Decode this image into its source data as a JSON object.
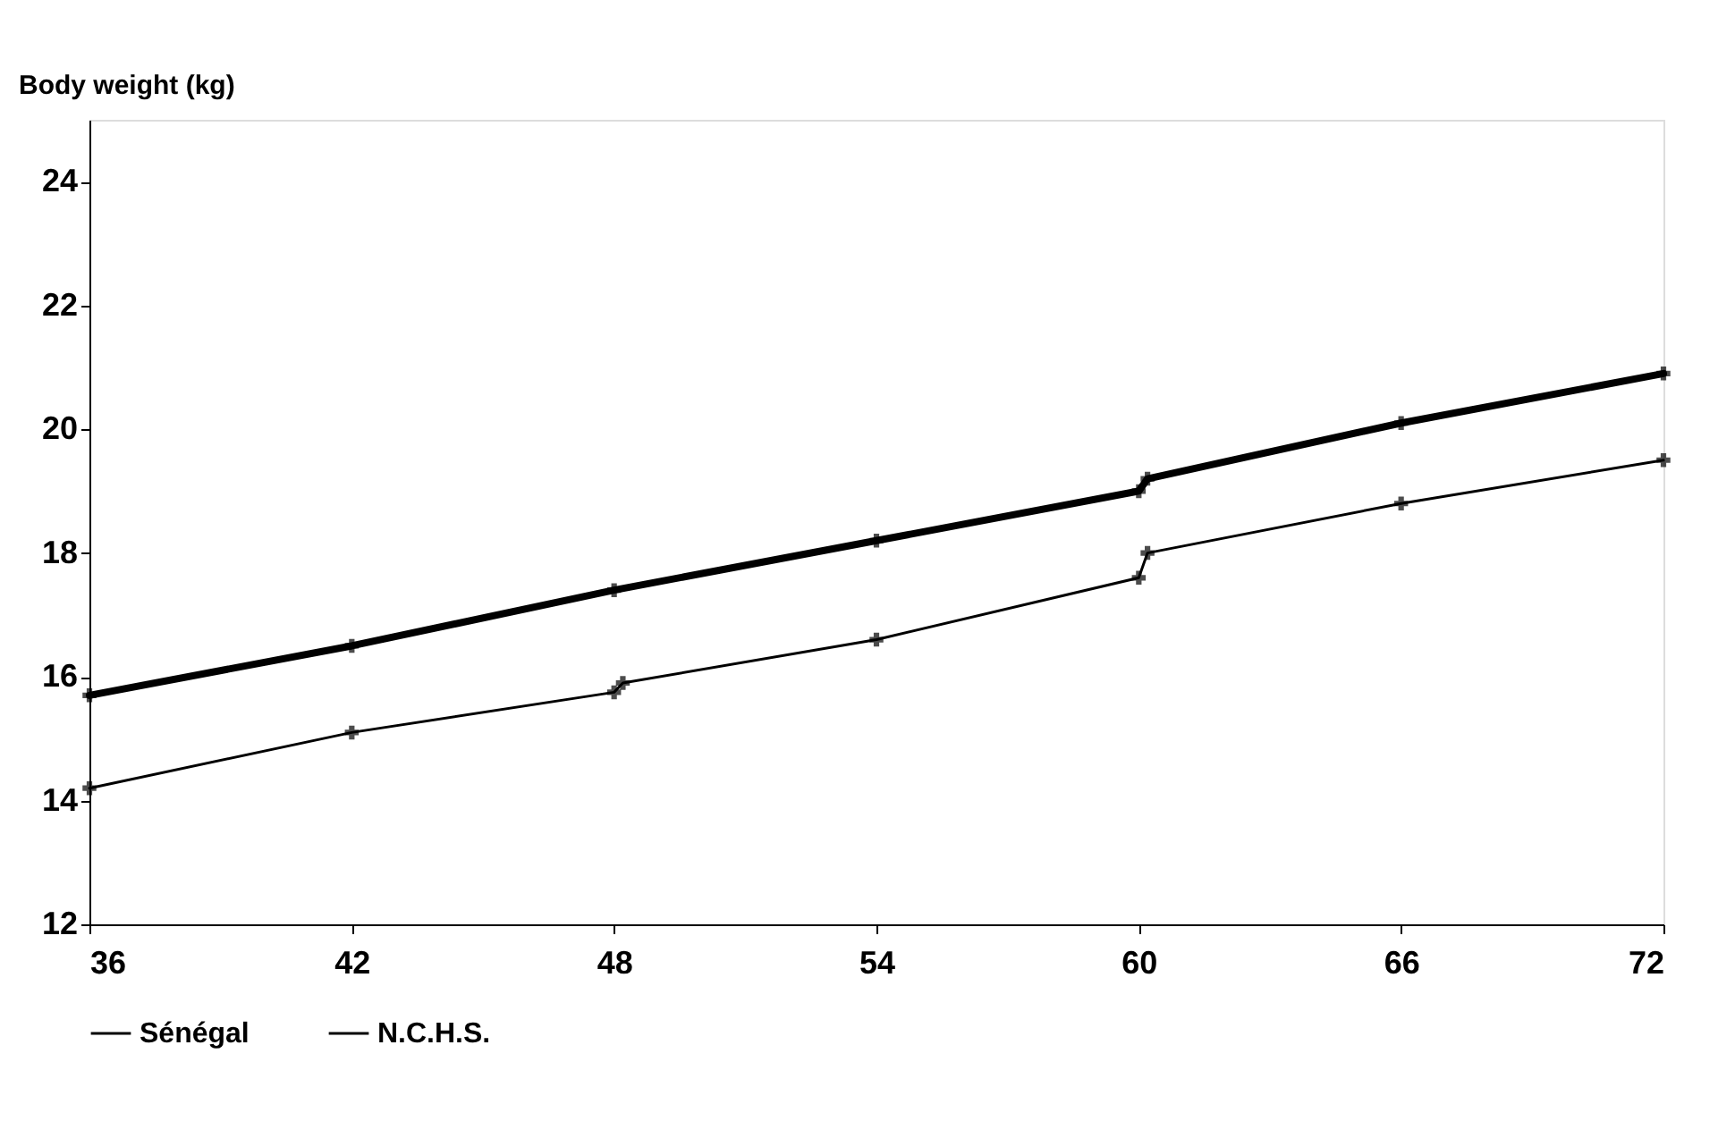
{
  "chart_data": {
    "type": "line",
    "ylabel": "Body weight (kg)",
    "xlim": [
      36,
      72
    ],
    "xticks": [
      36,
      42,
      48,
      54,
      60,
      66,
      72
    ],
    "ylim": [
      12,
      25
    ],
    "yticks": [
      12,
      14,
      16,
      18,
      20,
      22,
      24
    ],
    "grid": false,
    "legend": "bottom",
    "marker": "cross",
    "line_style": "solid",
    "series": [
      {
        "name": "Sénégal",
        "color": "#000000",
        "x": [
          36,
          42,
          48,
          48.2,
          54,
          60,
          60.2,
          66,
          72
        ],
        "values": [
          14.2,
          15.1,
          15.75,
          15.9,
          16.6,
          17.6,
          18.0,
          18.8,
          19.5
        ]
      },
      {
        "name": "N.C.H.S.",
        "color": "#000000",
        "x": [
          36,
          42,
          48,
          54,
          60,
          60.2,
          66,
          72
        ],
        "values": [
          15.7,
          16.5,
          17.4,
          18.2,
          19.0,
          19.2,
          20.1,
          20.9
        ]
      }
    ]
  }
}
